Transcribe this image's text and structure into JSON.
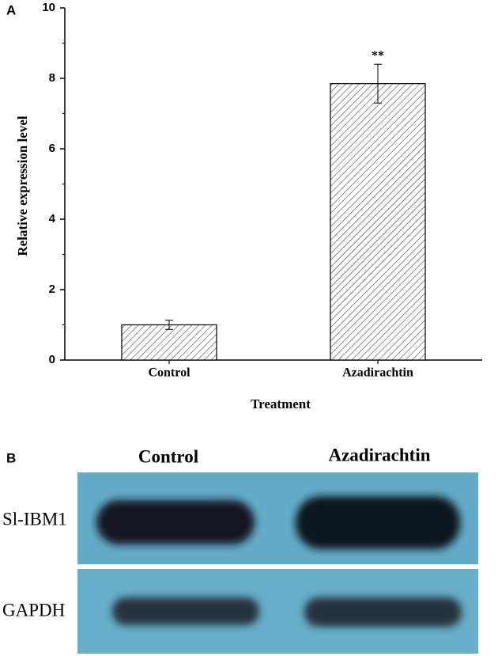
{
  "chart_data": {
    "type": "bar",
    "panel_label": "A",
    "x_label": "Treatment",
    "y_label": "Relative expression level",
    "categories": [
      "Control",
      "Azadirachtin"
    ],
    "values": [
      1.0,
      7.85
    ],
    "errors": [
      0.13,
      0.55
    ],
    "annotation": "**",
    "color": "#ffffff",
    "ylim": [
      0,
      10
    ],
    "yticks": [
      0,
      2,
      4,
      6,
      8,
      10
    ],
    "yminorticks": [
      1,
      3,
      5,
      7,
      9
    ],
    "grid": false
  },
  "blot": {
    "panel_label": "B",
    "columns": [
      "Control",
      "Azadirachtin"
    ],
    "rows": [
      "Sl-IBM1",
      "GAPDH"
    ]
  }
}
